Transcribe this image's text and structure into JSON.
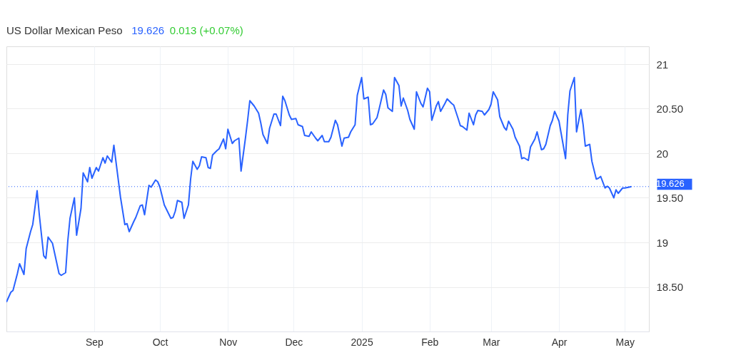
{
  "chart_data": {
    "type": "line",
    "title": "US Dollar Mexican Peso",
    "annotations": [
      "19.626",
      "0.013 (+0.07%)"
    ],
    "x": [
      "2024-07-23",
      "2024-07-25",
      "2024-07-26",
      "2024-07-28",
      "2024-07-29",
      "2024-07-31",
      "2024-08-01",
      "2024-08-03",
      "2024-08-04",
      "2024-08-06",
      "2024-08-07",
      "2024-08-09",
      "2024-08-10",
      "2024-08-11",
      "2024-08-13",
      "2024-08-16",
      "2024-08-17",
      "2024-08-19",
      "2024-08-20",
      "2024-08-21",
      "2024-08-23",
      "2024-08-24",
      "2024-08-26",
      "2024-08-27",
      "2024-08-29",
      "2024-08-30",
      "2024-08-31",
      "2024-09-02",
      "2024-09-03",
      "2024-09-05",
      "2024-09-06",
      "2024-09-07",
      "2024-09-09",
      "2024-09-10",
      "2024-09-13",
      "2024-09-15",
      "2024-09-16",
      "2024-09-17",
      "2024-09-19",
      "2024-09-20",
      "2024-09-22",
      "2024-09-23",
      "2024-09-24",
      "2024-09-26",
      "2024-09-27",
      "2024-09-29",
      "2024-09-30",
      "2024-10-01",
      "2024-10-03",
      "2024-10-06",
      "2024-10-07",
      "2024-10-08",
      "2024-10-09",
      "2024-10-11",
      "2024-10-12",
      "2024-10-14",
      "2024-10-15",
      "2024-10-16",
      "2024-10-18",
      "2024-10-19",
      "2024-10-20",
      "2024-10-22",
      "2024-10-23",
      "2024-10-24",
      "2024-10-25",
      "2024-10-27",
      "2024-10-28",
      "2024-10-30",
      "2024-10-31",
      "2024-11-01",
      "2024-11-03",
      "2024-11-04",
      "2024-11-06",
      "2024-11-07",
      "2024-11-09",
      "2024-11-10",
      "2024-11-11",
      "2024-11-13",
      "2024-11-15",
      "2024-11-16",
      "2024-11-17",
      "2024-11-19",
      "2024-11-20",
      "2024-11-22",
      "2024-11-23",
      "2024-11-25",
      "2024-11-26",
      "2024-11-27",
      "2024-11-29",
      "2024-11-30",
      "2024-12-02",
      "2024-12-03",
      "2024-12-05",
      "2024-12-06",
      "2024-12-08",
      "2024-12-09",
      "2024-12-11",
      "2024-12-12",
      "2024-12-14",
      "2024-12-15",
      "2024-12-17",
      "2024-12-18",
      "2024-12-20",
      "2024-12-21",
      "2024-12-23",
      "2024-12-24",
      "2024-12-26",
      "2024-12-27",
      "2024-12-29",
      "2024-12-30",
      "2025-01-01",
      "2025-01-02",
      "2025-01-04",
      "2025-01-05",
      "2025-01-06",
      "2025-01-08",
      "2025-01-09",
      "2025-01-11",
      "2025-01-12",
      "2025-01-13",
      "2025-01-15",
      "2025-01-16",
      "2025-01-18",
      "2025-01-19",
      "2025-01-20",
      "2025-01-22",
      "2025-01-23",
      "2025-01-25",
      "2025-01-26",
      "2025-01-28",
      "2025-01-29",
      "2025-01-31",
      "2025-02-01",
      "2025-02-02",
      "2025-02-04",
      "2025-02-05",
      "2025-02-06",
      "2025-02-08",
      "2025-02-09",
      "2025-02-11",
      "2025-02-12",
      "2025-02-14",
      "2025-02-15",
      "2025-02-16",
      "2025-02-18",
      "2025-02-19",
      "2025-02-21",
      "2025-02-22",
      "2025-02-23",
      "2025-02-25",
      "2025-02-26",
      "2025-02-28",
      "2025-03-01",
      "2025-03-02",
      "2025-03-04",
      "2025-03-05",
      "2025-03-07",
      "2025-03-08",
      "2025-03-09",
      "2025-03-11",
      "2025-03-12",
      "2025-03-14",
      "2025-03-15",
      "2025-03-16",
      "2025-03-18",
      "2025-03-19",
      "2025-03-21",
      "2025-03-22",
      "2025-03-24",
      "2025-03-25",
      "2025-03-26",
      "2025-03-28",
      "2025-03-29",
      "2025-03-30",
      "2025-04-01",
      "2025-04-02",
      "2025-04-04",
      "2025-04-05",
      "2025-04-06",
      "2025-04-08",
      "2025-04-09",
      "2025-04-11",
      "2025-04-12",
      "2025-04-13",
      "2025-04-15",
      "2025-04-16",
      "2025-04-18",
      "2025-04-19",
      "2025-04-20",
      "2025-04-22",
      "2025-04-23",
      "2025-04-24",
      "2025-04-26",
      "2025-04-27",
      "2025-04-28",
      "2025-04-30",
      "2025-05-01",
      "2025-05-03",
      "2025-05-04"
    ],
    "series": [
      {
        "color": "#2962ff",
        "values": [
          18.33,
          18.44,
          18.46,
          18.65,
          18.76,
          18.64,
          18.93,
          19.12,
          19.2,
          19.58,
          19.31,
          18.85,
          18.82,
          19.06,
          18.99,
          18.65,
          18.63,
          18.66,
          19.02,
          19.27,
          19.5,
          19.08,
          19.38,
          19.78,
          19.68,
          19.84,
          19.72,
          19.84,
          19.8,
          19.95,
          19.89,
          19.97,
          19.9,
          20.09,
          19.51,
          19.2,
          19.21,
          19.12,
          19.23,
          19.28,
          19.41,
          19.42,
          19.31,
          19.64,
          19.62,
          19.7,
          19.68,
          19.62,
          19.42,
          19.27,
          19.28,
          19.35,
          19.47,
          19.45,
          19.27,
          19.42,
          19.71,
          19.91,
          19.82,
          19.86,
          19.96,
          19.95,
          19.84,
          19.83,
          19.98,
          20.03,
          20.05,
          20.16,
          20.05,
          20.27,
          20.11,
          20.14,
          20.17,
          19.8,
          20.17,
          20.37,
          20.59,
          20.53,
          20.45,
          20.34,
          20.21,
          20.11,
          20.28,
          20.44,
          20.44,
          20.31,
          20.64,
          20.59,
          20.43,
          20.38,
          20.39,
          20.32,
          20.3,
          20.2,
          20.19,
          20.24,
          20.17,
          20.14,
          20.2,
          20.13,
          20.13,
          20.18,
          20.37,
          20.32,
          20.08,
          20.17,
          20.18,
          20.24,
          20.32,
          20.65,
          20.85,
          20.61,
          20.63,
          20.32,
          20.33,
          20.4,
          20.5,
          20.71,
          20.66,
          20.51,
          20.47,
          20.85,
          20.76,
          20.53,
          20.62,
          20.48,
          20.38,
          20.27,
          20.69,
          20.56,
          20.52,
          20.73,
          20.69,
          20.37,
          20.53,
          20.58,
          20.47,
          20.56,
          20.61,
          20.56,
          20.54,
          20.39,
          20.31,
          20.3,
          20.26,
          20.45,
          20.32,
          20.43,
          20.48,
          20.47,
          20.43,
          20.49,
          20.55,
          20.69,
          20.6,
          20.41,
          20.29,
          20.26,
          20.36,
          20.27,
          20.18,
          20.08,
          19.94,
          19.95,
          19.92,
          20.07,
          20.16,
          20.24,
          20.04,
          20.05,
          20.1,
          20.31,
          20.37,
          20.47,
          20.36,
          20.22,
          19.94,
          20.43,
          20.7,
          20.85,
          20.24,
          20.49,
          20.32,
          20.08,
          20.1,
          19.91,
          19.71,
          19.72,
          19.74,
          19.61,
          19.63,
          19.61,
          19.5,
          19.59,
          19.55,
          19.61,
          19.61,
          19.62,
          19.626
        ]
      }
    ],
    "xlim": [
      "2024-07-23",
      "2025-05-12"
    ],
    "xticks": [
      {
        "value": "2024-09-01",
        "label": "Sep"
      },
      {
        "value": "2024-10-01",
        "label": "Oct"
      },
      {
        "value": "2024-11-01",
        "label": "Nov"
      },
      {
        "value": "2024-12-01",
        "label": "Dec"
      },
      {
        "value": "2025-01-01",
        "label": "2025"
      },
      {
        "value": "2025-02-01",
        "label": "Feb"
      },
      {
        "value": "2025-03-01",
        "label": "Mar"
      },
      {
        "value": "2025-04-01",
        "label": "Apr"
      },
      {
        "value": "2025-05-01",
        "label": "May"
      }
    ],
    "ylim": [
      18,
      21.2
    ],
    "yticks": [
      {
        "value": 18.5,
        "label": "18.50"
      },
      19,
      {
        "value": 19.5,
        "label": "19.50"
      },
      20,
      {
        "value": 20.5,
        "label": "20.50"
      },
      21
    ],
    "grid": true,
    "ref_lines": [
      {
        "axis": "y",
        "value": 19.626,
        "label": "19.626",
        "color": "#2962ff",
        "line_style": "dotted"
      }
    ]
  }
}
